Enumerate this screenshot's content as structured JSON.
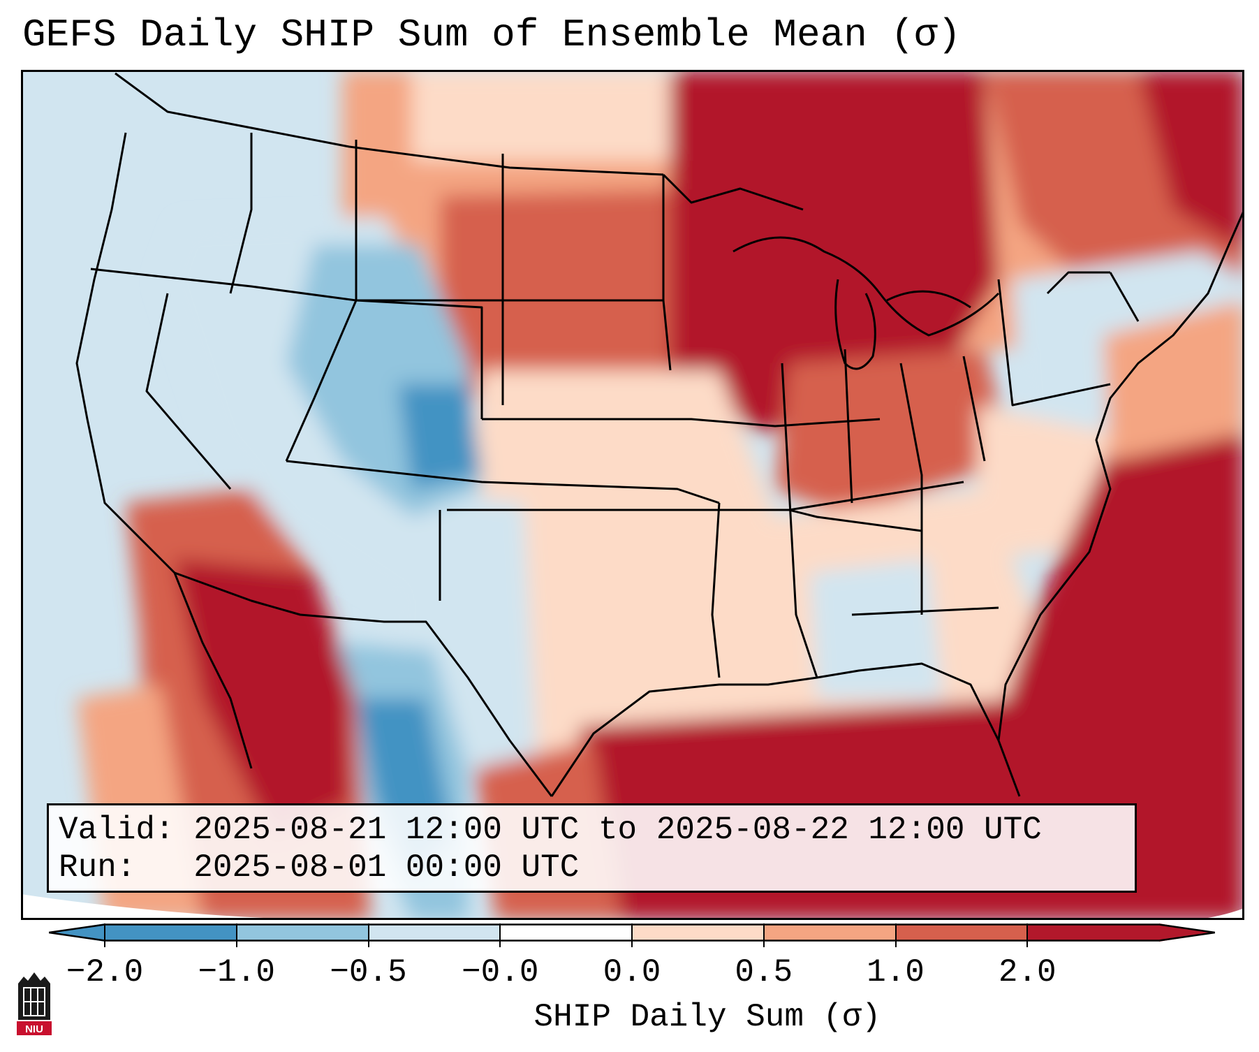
{
  "title": "GEFS Daily SHIP Sum of Ensemble Mean (σ)",
  "info": {
    "valid_label": "Valid:",
    "valid_value": "2025-08-21 12:00 UTC to 2025-08-22 12:00 UTC",
    "run_label": "Run:",
    "run_value": "2025-08-01 00:00 UTC"
  },
  "colorbar": {
    "label": "SHIP Daily Sum (σ)",
    "ticks": [
      "−2.0",
      "−1.0",
      "−0.5",
      "−0.0",
      "0.0",
      "0.5",
      "1.0",
      "2.0"
    ],
    "colors": [
      "#4393c3",
      "#92c5de",
      "#d1e5f0",
      "#ffffff",
      "#fddbc7",
      "#f4a582",
      "#d6604d",
      "#b2182b"
    ],
    "extend": "both"
  },
  "map": {
    "projection": "Lambert conformal, CONUS",
    "ocean_color": "#d1e5f0",
    "dominant_colors": {
      "north_central": "#d6604d",
      "great_lakes": "#b2182b",
      "gulf": "#b2182b",
      "atlantic": "#b2182b",
      "rockies": "#92c5de",
      "west_coast": "#d1e5f0"
    }
  },
  "logo": {
    "text": "NIU",
    "icon": "niu-tower-icon"
  }
}
